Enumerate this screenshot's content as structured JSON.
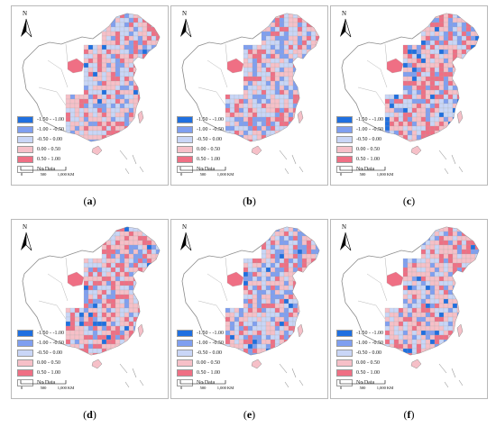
{
  "legend": {
    "items": [
      {
        "label": "-1.50 - -1.00",
        "color": "#1f6fe0"
      },
      {
        "label": "-1.00 - -0.50",
        "color": "#7f9ff0"
      },
      {
        "label": "-0.50 - 0.00",
        "color": "#c9d6f7"
      },
      {
        "label": "0.00 - 0.50",
        "color": "#f6c0c8"
      },
      {
        "label": "0.50 - 1.00",
        "color": "#ef6f84"
      },
      {
        "label": "No Data",
        "color": "#ffffff"
      }
    ]
  },
  "north_label": "N",
  "scale": {
    "ticks": [
      "0",
      "500",
      "1,000 KM"
    ]
  },
  "panels": [
    {
      "id": "a",
      "caption": "a",
      "mix": {
        "neg_strong": 0.02,
        "neg": 0.15,
        "neg_light": 0.25,
        "pos_light": 0.38,
        "pos": 0.2
      }
    },
    {
      "id": "b",
      "caption": "b",
      "mix": {
        "neg_strong": 0.0,
        "neg": 0.18,
        "neg_light": 0.33,
        "pos_light": 0.34,
        "pos": 0.15
      }
    },
    {
      "id": "c",
      "caption": "c",
      "mix": {
        "neg_strong": 0.05,
        "neg": 0.18,
        "neg_light": 0.22,
        "pos_light": 0.32,
        "pos": 0.23
      }
    },
    {
      "id": "d",
      "caption": "d",
      "mix": {
        "neg_strong": 0.04,
        "neg": 0.14,
        "neg_light": 0.2,
        "pos_light": 0.38,
        "pos": 0.24
      }
    },
    {
      "id": "e",
      "caption": "e",
      "mix": {
        "neg_strong": 0.05,
        "neg": 0.22,
        "neg_light": 0.25,
        "pos_light": 0.3,
        "pos": 0.18
      }
    },
    {
      "id": "f",
      "caption": "f",
      "mix": {
        "neg_strong": 0.03,
        "neg": 0.16,
        "neg_light": 0.24,
        "pos_light": 0.38,
        "pos": 0.19
      }
    }
  ]
}
